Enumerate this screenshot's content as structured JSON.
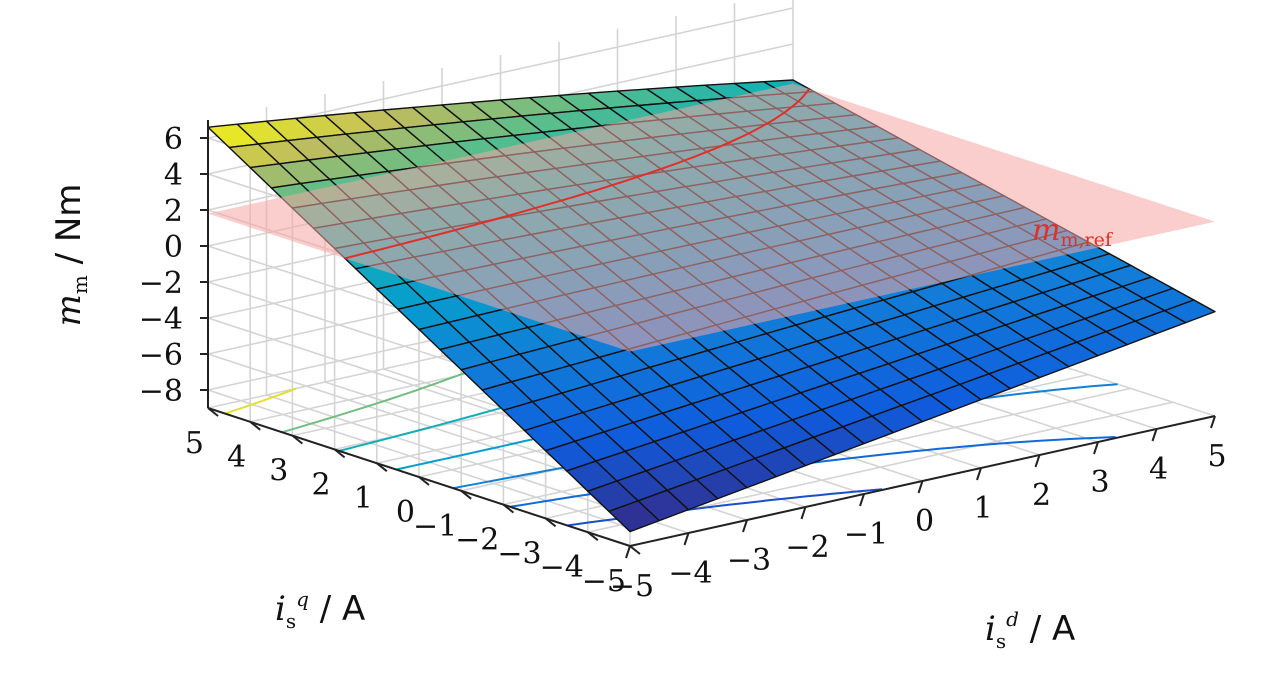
{
  "chart_data": {
    "type": "surface3d",
    "x_label": "i_s^d / A",
    "y_label": "i_s^q / A",
    "z_label": "m_m / Nm",
    "xlim": [
      -5,
      5
    ],
    "ylim": [
      -5,
      5
    ],
    "zlim": [
      -9,
      7
    ],
    "x_ticks": [
      -5,
      -4,
      -3,
      -2,
      -1,
      0,
      1,
      2,
      3,
      4,
      5
    ],
    "y_ticks": [
      -5,
      -4,
      -3,
      -2,
      -1,
      0,
      1,
      2,
      3,
      4,
      5
    ],
    "z_ticks": [
      6,
      4,
      2,
      0,
      -2,
      -4,
      -6,
      -8
    ],
    "grid": true,
    "surface": {
      "description": "Torque surface over d/q stator currents",
      "corners": {
        "x_min_y_max": 6.6,
        "x_max_y_max": 2.0,
        "x_min_y_min": -8.2,
        "x_max_y_min": -3.2
      },
      "grid_n": 21,
      "colormap": "parula"
    },
    "reference_plane": {
      "label": "m_m,ref",
      "value": 1.8,
      "color": "#f4a6a4"
    },
    "contour_levels": [
      6,
      4,
      2,
      0,
      -2,
      -4,
      -6
    ],
    "intersection_color": "#e0302a",
    "ref_label_color": "#e0302a"
  },
  "labels": {
    "tick_x": [
      "−5",
      "−4",
      "−3",
      "−2",
      "−1",
      "0",
      "1",
      "2",
      "3",
      "4",
      "5"
    ],
    "tick_y": [
      "−5",
      "−4",
      "−3",
      "−2",
      "−1",
      "0",
      "1",
      "2",
      "3",
      "4",
      "5"
    ],
    "tick_z": [
      "6",
      "4",
      "2",
      "0",
      "−2",
      "−4",
      "−6",
      "−8"
    ]
  }
}
